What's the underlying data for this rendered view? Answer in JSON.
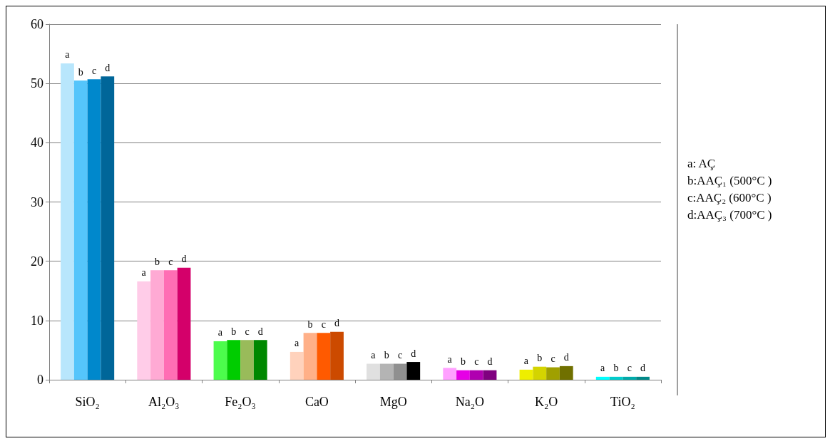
{
  "chart_data": {
    "type": "bar",
    "categories": [
      "SiO₂",
      "Al₂O₃",
      "Fe₂O₃",
      "CaO",
      "MgO",
      "Na₂O",
      "K₂O",
      "TiO₂"
    ],
    "series": [
      {
        "name": "a",
        "values": [
          53.4,
          16.6,
          6.5,
          4.7,
          2.7,
          2.0,
          1.7,
          0.5
        ],
        "colors": [
          "#b8e6fc",
          "#ffcce8",
          "#4cfc4c",
          "#ffd2bc",
          "#e0e0e0",
          "#ffa0ff",
          "#eeee00",
          "#00ffff"
        ]
      },
      {
        "name": "b",
        "values": [
          50.5,
          18.5,
          6.7,
          7.9,
          2.7,
          1.6,
          2.2,
          0.5
        ],
        "colors": [
          "#55c5fb",
          "#ffaad4",
          "#00cc00",
          "#ffb088",
          "#b4b4b4",
          "#e600e6",
          "#d4d400",
          "#00cccc"
        ]
      },
      {
        "name": "c",
        "values": [
          50.7,
          18.5,
          6.7,
          7.9,
          2.7,
          1.6,
          2.1,
          0.5
        ],
        "colors": [
          "#0088cc",
          "#ff6eb4",
          "#99bb5a",
          "#ff5a00",
          "#909090",
          "#b000b0",
          "#a0a000",
          "#00aaaa"
        ]
      },
      {
        "name": "d",
        "values": [
          51.2,
          18.9,
          6.7,
          8.1,
          3.0,
          1.6,
          2.3,
          0.5
        ],
        "colors": [
          "#006699",
          "#d4006a",
          "#008800",
          "#cc4a00",
          "#000000",
          "#800080",
          "#707000",
          "#008888"
        ]
      }
    ],
    "ylim": [
      0,
      60
    ],
    "yticks": [
      0,
      10,
      20,
      30,
      40,
      50,
      60
    ],
    "grid": "y",
    "legend": false,
    "annotations": [
      "a: AÇ",
      "b:AAÇ₁ (500°C )",
      "c:AAÇ₂ (600°C )",
      "d:AAÇ₃ (700°C )"
    ]
  }
}
